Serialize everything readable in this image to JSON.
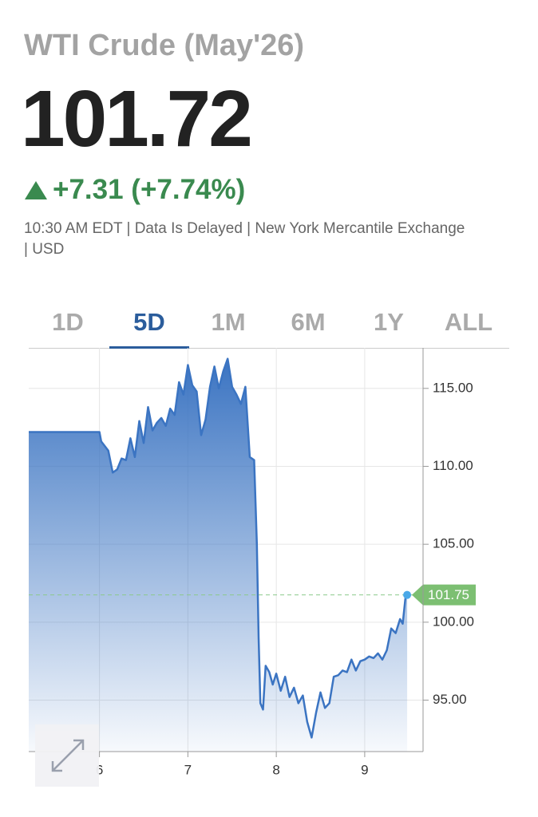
{
  "header": {
    "title": "WTI Crude (May'26)",
    "price": "101.72",
    "change": "+7.31 (+7.74%)",
    "meta": "10:30 AM EDT | Data Is Delayed | New York Mercantile Exchange | USD"
  },
  "tabs": {
    "items": [
      "1D",
      "5D",
      "1M",
      "6M",
      "1Y",
      "ALL"
    ],
    "selected": "5D"
  },
  "chart_data": {
    "type": "area",
    "color": "#3b74c2",
    "grid": true,
    "x": [
      5.2,
      6.0,
      6.02,
      6.1,
      6.15,
      6.2,
      6.25,
      6.3,
      6.35,
      6.4,
      6.45,
      6.5,
      6.55,
      6.6,
      6.65,
      6.7,
      6.75,
      6.8,
      6.85,
      6.9,
      6.95,
      7.0,
      7.05,
      7.1,
      7.15,
      7.2,
      7.25,
      7.3,
      7.35,
      7.4,
      7.45,
      7.5,
      7.55,
      7.6,
      7.65,
      7.7,
      7.75,
      7.78,
      7.8,
      7.82,
      7.85,
      7.88,
      7.92,
      7.96,
      8.0,
      8.05,
      8.1,
      8.15,
      8.2,
      8.25,
      8.3,
      8.35,
      8.4,
      8.45,
      8.5,
      8.55,
      8.6,
      8.65,
      8.7,
      8.75,
      8.8,
      8.85,
      8.9,
      8.95,
      9.0,
      9.05,
      9.1,
      9.15,
      9.2,
      9.25,
      9.3,
      9.35,
      9.4,
      9.43,
      9.46,
      9.48
    ],
    "values": [
      112.2,
      112.2,
      111.6,
      111.0,
      109.6,
      109.8,
      110.5,
      110.4,
      111.8,
      110.6,
      112.9,
      111.5,
      113.8,
      112.3,
      112.8,
      113.1,
      112.6,
      113.7,
      113.3,
      115.4,
      114.6,
      116.5,
      115.2,
      114.8,
      112.0,
      113.0,
      115.1,
      116.4,
      115.0,
      116.1,
      116.9,
      115.1,
      114.6,
      114.0,
      115.1,
      110.6,
      110.4,
      105.0,
      99.0,
      94.8,
      94.4,
      97.2,
      96.8,
      96.0,
      96.7,
      95.6,
      96.5,
      95.2,
      95.8,
      94.8,
      95.3,
      93.6,
      92.6,
      94.2,
      95.5,
      94.5,
      94.8,
      96.5,
      96.6,
      96.9,
      96.8,
      97.6,
      96.9,
      97.5,
      97.6,
      97.8,
      97.7,
      98.0,
      97.6,
      98.2,
      99.6,
      99.3,
      100.2,
      99.9,
      101.5,
      101.75
    ],
    "last_value": 101.75,
    "xlim": [
      5.2,
      9.66
    ],
    "xticks": [
      6,
      7,
      8,
      9
    ],
    "ylim": [
      91.7,
      117.6
    ],
    "yticks": [
      {
        "value": 95,
        "label": "95.00"
      },
      {
        "value": 100,
        "label": "100.00"
      },
      {
        "value": 105,
        "label": "105.00"
      },
      {
        "value": 110,
        "label": "110.00"
      },
      {
        "value": 115,
        "label": "115.00"
      }
    ]
  }
}
